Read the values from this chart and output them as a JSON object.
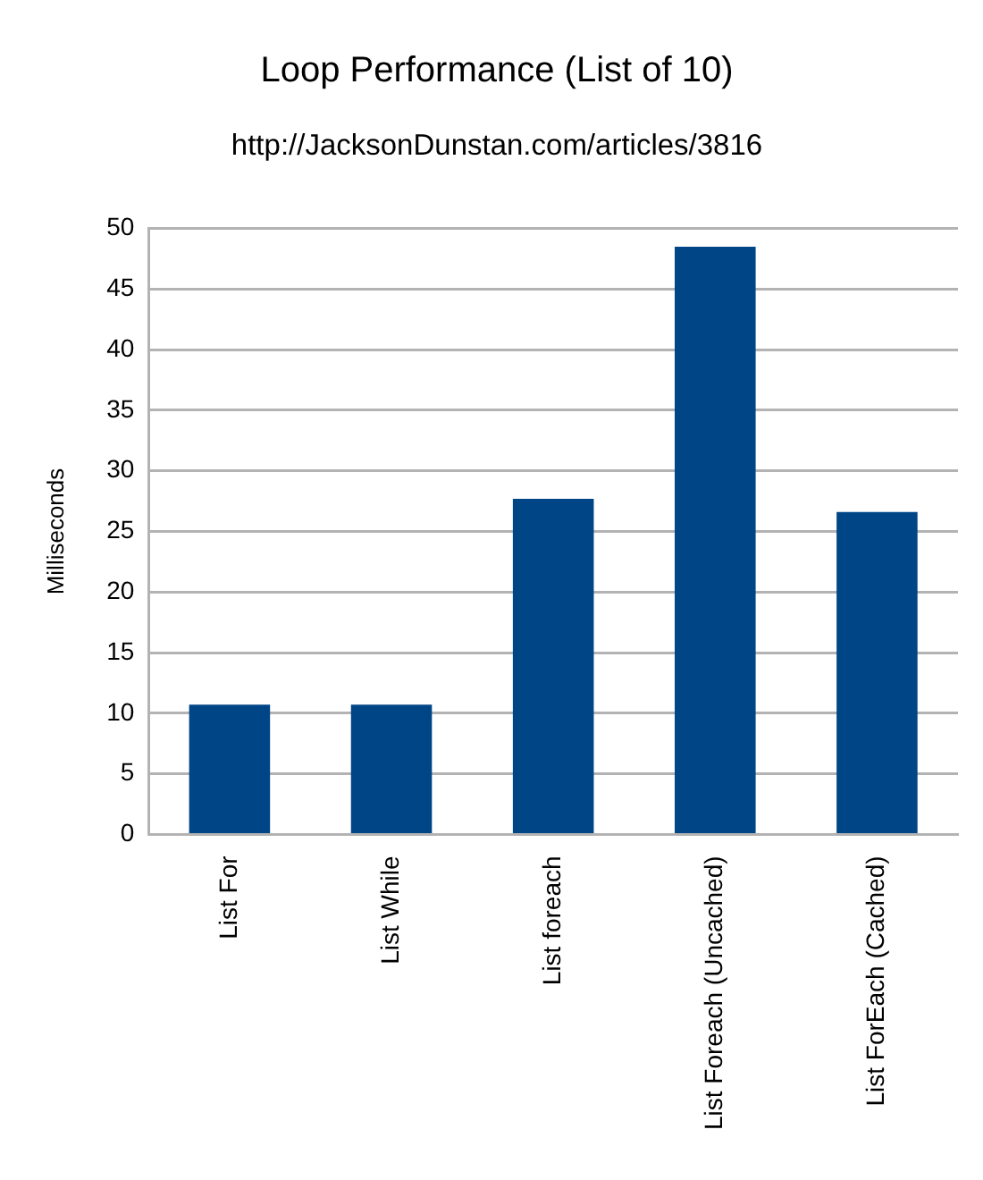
{
  "chart_data": {
    "type": "bar",
    "title": "Loop Performance (List of 10)",
    "subtitle": "http://JacksonDunstan.com/articles/3816",
    "ylabel": "Milliseconds",
    "categories": [
      "List For",
      "List While",
      "List foreach",
      "List Foreach (Uncached)",
      "List ForEach (Cached)"
    ],
    "values": [
      10.7,
      10.7,
      27.7,
      48.5,
      26.6
    ],
    "color": "#004586",
    "ylim": [
      0,
      50
    ],
    "yticks": [
      0,
      5,
      10,
      15,
      20,
      25,
      30,
      35,
      40,
      45,
      50
    ],
    "grid": "y"
  }
}
